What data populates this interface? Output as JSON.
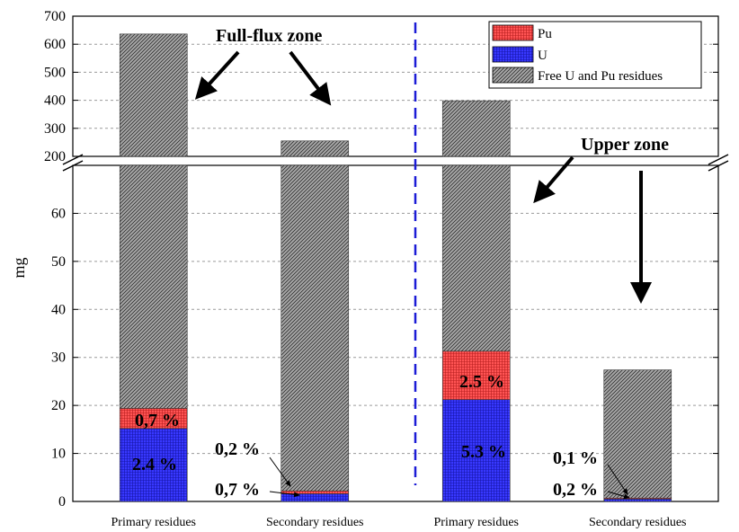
{
  "chart_data": {
    "type": "bar",
    "stacked": true,
    "broken_y_axis": true,
    "ylabel": "mg",
    "categories": [
      "Primary residues",
      "Secondary residues",
      "Primary residues",
      "Secondary residues"
    ],
    "groups": [
      "Full-flux zone",
      "Upper zone"
    ],
    "series": [
      {
        "name": "U",
        "color": "#2a2aff",
        "values": [
          15.2,
          1.6,
          21.2,
          0.5
        ]
      },
      {
        "name": "Pu",
        "color": "#ff4c4c",
        "values": [
          4.2,
          0.6,
          10.1,
          0.2
        ]
      },
      {
        "name": "Free U and Pu residues",
        "color": "#a6a6a6",
        "values": [
          617,
          253,
          367,
          26.7
        ]
      }
    ],
    "totals": [
      636.4,
      255.2,
      398.3,
      27.4
    ],
    "y_lower_range": [
      0,
      70
    ],
    "y_upper_range": [
      200,
      700
    ],
    "y_lower_ticks": [
      "0",
      "10",
      "20",
      "30",
      "40",
      "50",
      "60"
    ],
    "y_upper_ticks": [
      "200",
      "300",
      "400",
      "500",
      "600",
      "700"
    ],
    "grid": true,
    "legend_position": "top-right",
    "annotations": [
      {
        "text": "Full-flux zone",
        "kind": "zone"
      },
      {
        "text": "Upper zone",
        "kind": "zone"
      },
      {
        "text": "0,7 %",
        "kind": "pct"
      },
      {
        "text": "2.4 %",
        "kind": "pct"
      },
      {
        "text": "0,2 %",
        "kind": "pct"
      },
      {
        "text": "0,7 %",
        "kind": "pct"
      },
      {
        "text": "2.5 %",
        "kind": "pct"
      },
      {
        "text": "5.3 %",
        "kind": "pct"
      },
      {
        "text": "0,1 %",
        "kind": "pct"
      },
      {
        "text": "0,2 %",
        "kind": "pct"
      }
    ]
  }
}
